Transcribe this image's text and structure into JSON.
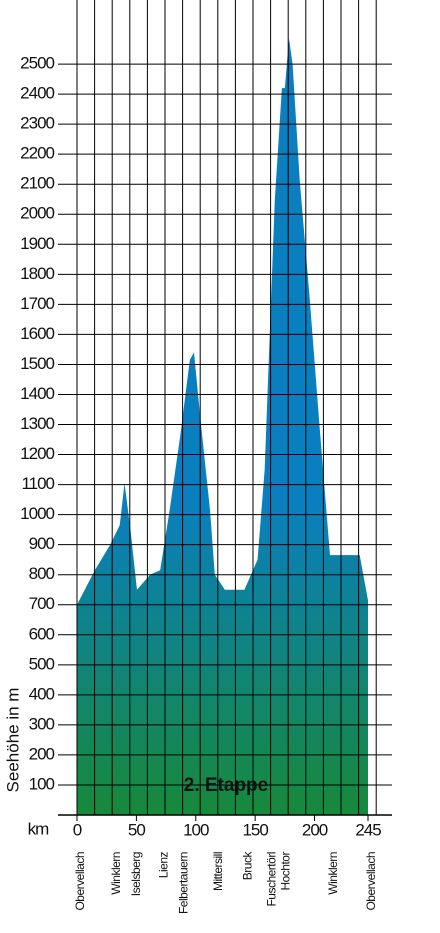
{
  "chart_data": {
    "type": "area",
    "annotation": "2. Etappe",
    "ylabel": "Seehöhe in m",
    "xlabel": "km",
    "x": [
      0,
      15,
      28,
      36,
      40,
      45,
      50.5,
      61.5,
      70,
      78,
      87,
      95,
      98.5,
      104,
      112,
      116,
      124.5,
      141,
      152,
      158,
      166.5,
      172.5,
      175,
      178.5,
      181.5,
      187.5,
      196,
      204.5,
      213,
      238,
      245
    ],
    "values": [
      700,
      815,
      900,
      965,
      1105,
      950,
      750,
      800,
      815,
      1015,
      1265,
      1515,
      1540,
      1315,
      1015,
      800,
      750,
      750,
      850,
      1150,
      2045,
      2420,
      2420,
      2585,
      2500,
      2115,
      1715,
      1280,
      865,
      865,
      715
    ],
    "xlim": [
      0,
      245
    ],
    "xticks": [
      0,
      50,
      100,
      150,
      200,
      245
    ],
    "ylim": [
      0,
      2700
    ],
    "yticks": [
      100,
      200,
      300,
      400,
      500,
      600,
      700,
      800,
      900,
      1000,
      1100,
      1200,
      1300,
      1400,
      1500,
      1600,
      1700,
      1800,
      1900,
      2000,
      2100,
      2200,
      2300,
      2400,
      2500
    ],
    "colors": [
      "#0a7fc0",
      "#17893a"
    ],
    "grid": true,
    "places": [
      {
        "name": "Obervellach",
        "km": 0
      },
      {
        "name": "Winklern",
        "km": 30
      },
      {
        "name": "Iselsberg",
        "km": 47
      },
      {
        "name": "Lienz",
        "km": 70
      },
      {
        "name": "Felbertauern",
        "km": 87
      },
      {
        "name": "Mittersill",
        "km": 116
      },
      {
        "name": "Bruck",
        "km": 141
      },
      {
        "name": "Fuschertörl",
        "km": 161
      },
      {
        "name": "Hochtor",
        "km": 173
      },
      {
        "name": "Winklern",
        "km": 213
      },
      {
        "name": "Obervellach",
        "km": 245
      }
    ]
  }
}
